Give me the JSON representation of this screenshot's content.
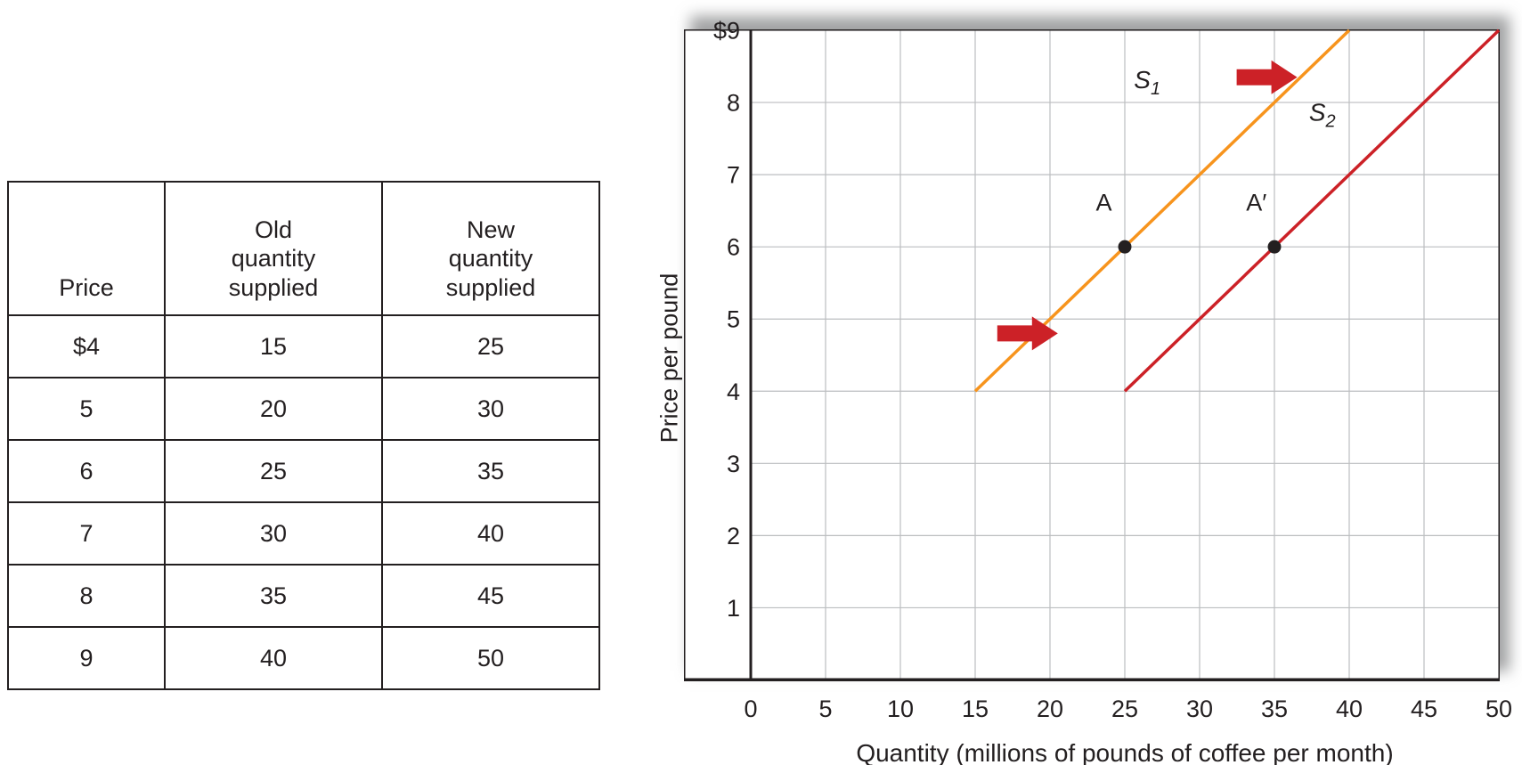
{
  "table": {
    "headers": [
      "Price",
      "Old\nquantity\nsupplied",
      "New\nquantity\nsupplied"
    ],
    "rows": [
      [
        "$4",
        "15",
        "25"
      ],
      [
        "5",
        "20",
        "30"
      ],
      [
        "6",
        "25",
        "35"
      ],
      [
        "7",
        "30",
        "40"
      ],
      [
        "8",
        "35",
        "45"
      ],
      [
        "9",
        "40",
        "50"
      ]
    ]
  },
  "chart_data": {
    "type": "line",
    "title": "",
    "xlabel": "Quantity (millions of pounds of coffee per month)",
    "ylabel": "Price per pound",
    "xlim": [
      0,
      50
    ],
    "ylim": [
      0,
      9
    ],
    "x_ticks": [
      0,
      5,
      10,
      15,
      20,
      25,
      30,
      35,
      40,
      45,
      50
    ],
    "y_ticks": [
      {
        "value": 1,
        "label": "1"
      },
      {
        "value": 2,
        "label": "2"
      },
      {
        "value": 3,
        "label": "3"
      },
      {
        "value": 4,
        "label": "4"
      },
      {
        "value": 5,
        "label": "5"
      },
      {
        "value": 6,
        "label": "6"
      },
      {
        "value": 7,
        "label": "7"
      },
      {
        "value": 8,
        "label": "8"
      },
      {
        "value": 9,
        "label": "$9"
      }
    ],
    "grid": true,
    "grid_color": "#bcbec0",
    "axis_color": "#231f20",
    "marker_color": "#231f20",
    "arrow_color": "#cc2127",
    "series": [
      {
        "name": "S1",
        "label_main": "S",
        "label_sub": "1",
        "color": "#f7941d",
        "points": [
          [
            15,
            4
          ],
          [
            40,
            9
          ]
        ],
        "label_at": [
          26.5,
          8.2
        ]
      },
      {
        "name": "S2",
        "label_main": "S",
        "label_sub": "2",
        "color": "#cc2127",
        "points": [
          [
            25,
            4
          ],
          [
            50,
            9
          ]
        ],
        "label_at": [
          38.2,
          7.75
        ]
      }
    ],
    "markers": [
      {
        "label": "A",
        "x": 25,
        "y": 6,
        "label_at": [
          23.6,
          6.5
        ]
      },
      {
        "label": "A′",
        "x": 35,
        "y": 6,
        "label_at": [
          33.8,
          6.5
        ]
      }
    ],
    "shift_arrows": [
      {
        "x": 34.5,
        "y": 8.35
      },
      {
        "x": 18.5,
        "y": 4.8
      }
    ]
  }
}
